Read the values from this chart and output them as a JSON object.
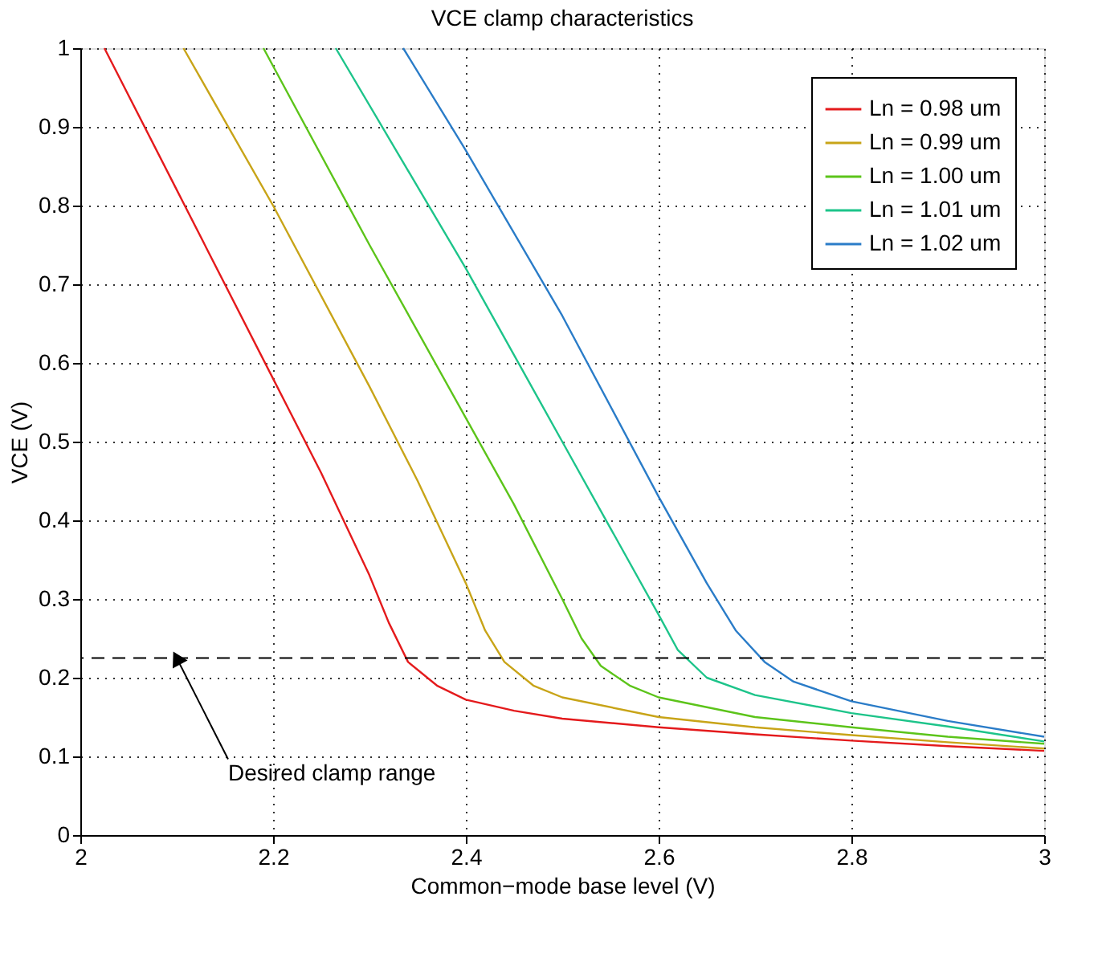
{
  "chart_data": {
    "type": "line",
    "title": "VCE clamp characteristics",
    "xlabel": "Common−mode base level (V)",
    "ylabel": "VCE (V)",
    "xlim": [
      2,
      3
    ],
    "ylim": [
      0,
      1
    ],
    "xticks": [
      2,
      2.2,
      2.4,
      2.6,
      2.8,
      3
    ],
    "yticks": [
      0,
      0.1,
      0.2,
      0.3,
      0.4,
      0.5,
      0.6,
      0.7,
      0.8,
      0.9,
      1
    ],
    "grid": true,
    "legend": "top right",
    "line_style": "solid",
    "marker": "none",
    "series": [
      {
        "name": "Ln = 0.98 um",
        "color": "#e41a1c",
        "x": [
          2.025,
          2.1,
          2.2,
          2.25,
          2.3,
          2.32,
          2.34,
          2.37,
          2.4,
          2.45,
          2.5,
          2.6,
          2.7,
          2.8,
          2.9,
          3
        ],
        "values": [
          1,
          0.82,
          0.58,
          0.46,
          0.33,
          0.27,
          0.22,
          0.19,
          0.172,
          0.158,
          0.148,
          0.137,
          0.128,
          0.12,
          0.113,
          0.107
        ]
      },
      {
        "name": "Ln = 0.99 um",
        "color": "#c8a418",
        "x": [
          2.107,
          2.2,
          2.3,
          2.35,
          2.4,
          2.42,
          2.44,
          2.47,
          2.5,
          2.6,
          2.7,
          2.8,
          2.9,
          3
        ],
        "values": [
          1,
          0.8,
          0.57,
          0.45,
          0.32,
          0.26,
          0.22,
          0.19,
          0.175,
          0.15,
          0.137,
          0.127,
          0.118,
          0.11
        ]
      },
      {
        "name": "Ln = 1.00 um",
        "color": "#5cc41a",
        "x": [
          2.19,
          2.3,
          2.4,
          2.45,
          2.5,
          2.52,
          2.54,
          2.57,
          2.6,
          2.7,
          2.8,
          2.9,
          3
        ],
        "values": [
          1,
          0.75,
          0.53,
          0.42,
          0.3,
          0.25,
          0.215,
          0.19,
          0.175,
          0.15,
          0.137,
          0.125,
          0.116
        ]
      },
      {
        "name": "Ln = 1.01 um",
        "color": "#1dc48a",
        "x": [
          2.265,
          2.4,
          2.5,
          2.55,
          2.6,
          2.62,
          2.65,
          2.7,
          2.8,
          2.9,
          3
        ],
        "values": [
          1,
          0.72,
          0.5,
          0.39,
          0.28,
          0.235,
          0.2,
          0.178,
          0.155,
          0.138,
          0.119
        ]
      },
      {
        "name": "Ln = 1.02 um",
        "color": "#2a7cc8",
        "x": [
          2.335,
          2.4,
          2.5,
          2.6,
          2.65,
          2.68,
          2.71,
          2.74,
          2.8,
          2.9,
          3
        ],
        "values": [
          1,
          0.87,
          0.66,
          0.43,
          0.32,
          0.26,
          0.22,
          0.195,
          0.17,
          0.145,
          0.125
        ]
      }
    ],
    "ref_lines": [
      {
        "axis": "y",
        "value": 0.225,
        "color": "#000000",
        "line_style": "dashed"
      }
    ],
    "annotations": [
      {
        "text": "Desired clamp range",
        "x": 2.1,
        "y": 0.225
      }
    ]
  }
}
